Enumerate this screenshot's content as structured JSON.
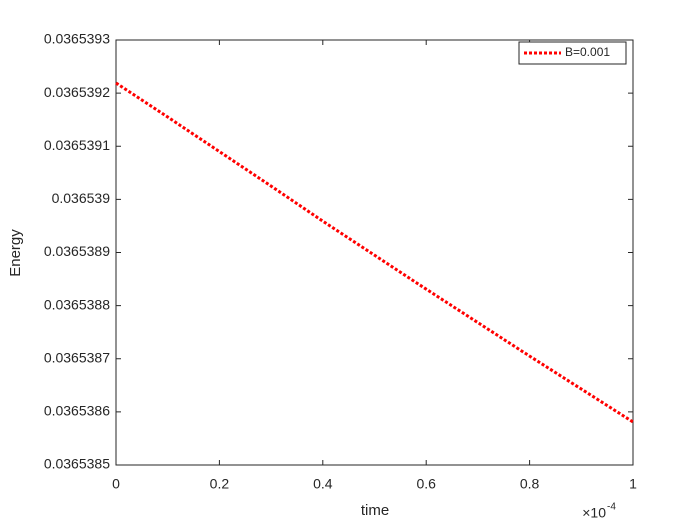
{
  "chart_data": {
    "type": "line",
    "x_label": "time",
    "y_label": "Energy",
    "x": [
      0,
      1e-05,
      2e-05,
      3e-05,
      4e-05,
      5e-05,
      6e-05,
      7e-05,
      8e-05,
      9e-05,
      0.0001
    ],
    "series": [
      {
        "name": "B=0.001",
        "color": "#ff0000",
        "values": [
          0.036539219,
          0.036539155,
          0.03653909,
          0.036539025,
          0.036538959,
          0.036538895,
          0.036538831,
          0.036538768,
          0.036538705,
          0.036538643,
          0.036538581
        ]
      }
    ],
    "xlim": [
      0,
      0.0001
    ],
    "xticks": [
      {
        "value": 0,
        "label": "0"
      },
      {
        "value": 2e-05,
        "label": "0.2"
      },
      {
        "value": 4e-05,
        "label": "0.4"
      },
      {
        "value": 6e-05,
        "label": "0.6"
      },
      {
        "value": 8e-05,
        "label": "0.8"
      },
      {
        "value": 0.0001,
        "label": "1"
      }
    ],
    "x_multiplier": "×10",
    "x_exponent": "-4",
    "ylim": [
      0.0365385,
      0.0365393
    ],
    "yticks": [
      0.0365385,
      0.0365386,
      0.0365387,
      0.0365388,
      0.0365389,
      0.036539,
      0.0365391,
      0.0365392,
      0.0365393
    ],
    "grid": false,
    "legend": "northeast"
  }
}
